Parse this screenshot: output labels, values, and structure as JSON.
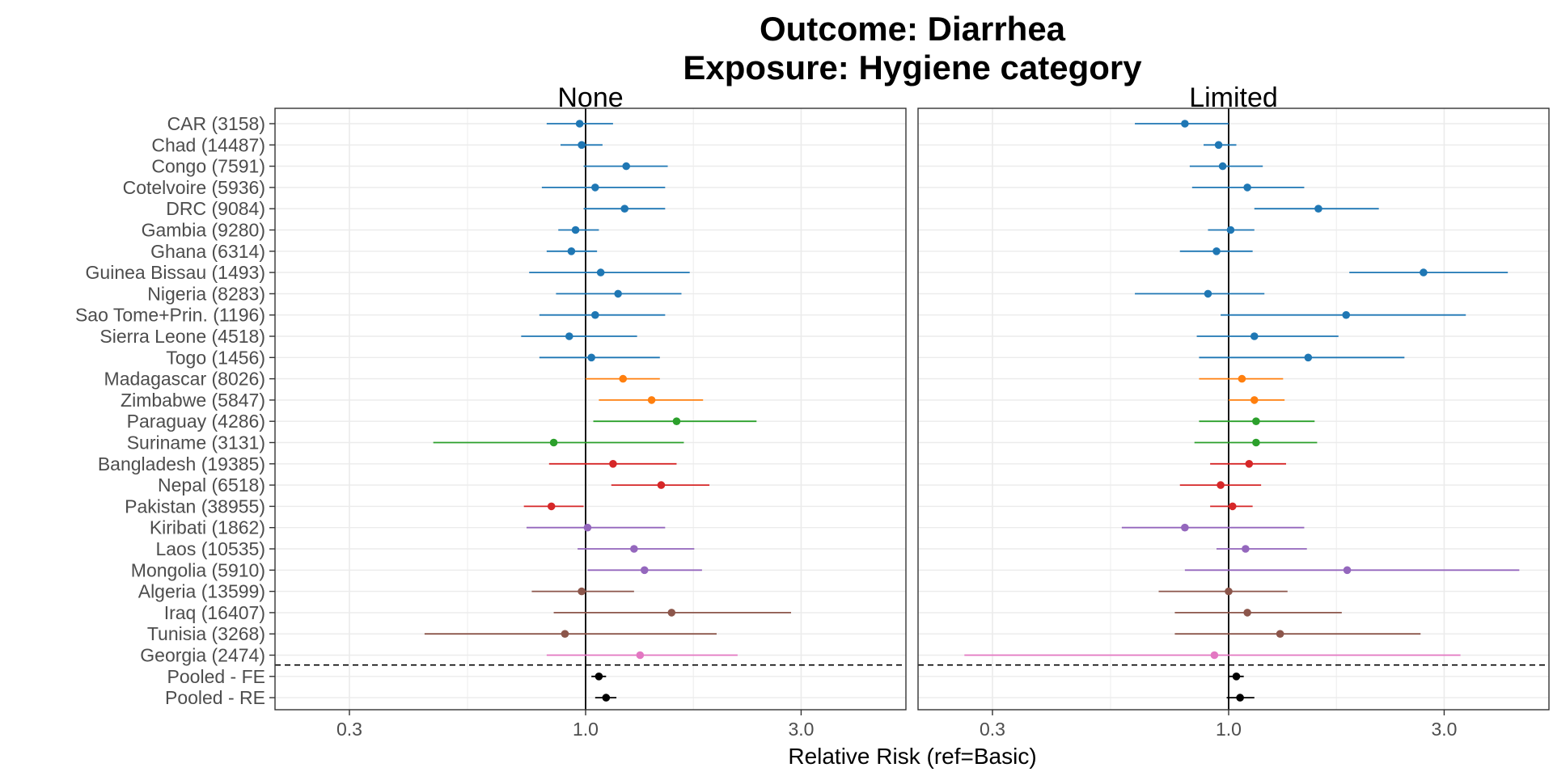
{
  "chart_data": {
    "type": "scatter",
    "title": "Outcome: Diarrhea",
    "subtitle": "Exposure: Hygiene category",
    "xlabel": "Relative Risk (ref=Basic)",
    "x_scale": "log",
    "xlim": [
      0.22,
      4.3
    ],
    "x_ticks": [
      0.3,
      1.0,
      3.0
    ],
    "x_tick_labels": [
      "0.3",
      "1.0",
      "3.0"
    ],
    "reference_line": 1.0,
    "grid": true,
    "colors": {
      "blue": "#1f77b4",
      "orange": "#ff7f0e",
      "green": "#2ca02c",
      "red": "#d62728",
      "purple": "#9467bd",
      "brown": "#8c564b",
      "pink": "#e377c2",
      "black": "#000000"
    },
    "rows": [
      {
        "label": "CAR (3158)",
        "color": "blue"
      },
      {
        "label": "Chad (14487)",
        "color": "blue"
      },
      {
        "label": "Congo (7591)",
        "color": "blue"
      },
      {
        "label": "Cotelvoire (5936)",
        "color": "blue"
      },
      {
        "label": "DRC (9084)",
        "color": "blue"
      },
      {
        "label": "Gambia (9280)",
        "color": "blue"
      },
      {
        "label": "Ghana (6314)",
        "color": "blue"
      },
      {
        "label": "Guinea Bissau (1493)",
        "color": "blue"
      },
      {
        "label": "Nigeria (8283)",
        "color": "blue"
      },
      {
        "label": "Sao Tome+Prin. (1196)",
        "color": "blue"
      },
      {
        "label": "Sierra Leone (4518)",
        "color": "blue"
      },
      {
        "label": "Togo (1456)",
        "color": "blue"
      },
      {
        "label": "Madagascar (8026)",
        "color": "orange"
      },
      {
        "label": "Zimbabwe (5847)",
        "color": "orange"
      },
      {
        "label": "Paraguay (4286)",
        "color": "green"
      },
      {
        "label": "Suriname (3131)",
        "color": "green"
      },
      {
        "label": "Bangladesh (19385)",
        "color": "red"
      },
      {
        "label": "Nepal (6518)",
        "color": "red"
      },
      {
        "label": "Pakistan (38955)",
        "color": "red"
      },
      {
        "label": "Kiribati (1862)",
        "color": "purple"
      },
      {
        "label": "Laos (10535)",
        "color": "purple"
      },
      {
        "label": "Mongolia (5910)",
        "color": "purple"
      },
      {
        "label": "Algeria (13599)",
        "color": "brown"
      },
      {
        "label": "Iraq (16407)",
        "color": "brown"
      },
      {
        "label": "Tunisia (3268)",
        "color": "brown"
      },
      {
        "label": "Georgia (2474)",
        "color": "pink"
      },
      {
        "label": "Pooled - FE",
        "color": "black"
      },
      {
        "label": "Pooled - RE",
        "color": "black"
      }
    ],
    "separator_after_row": 26,
    "panels": [
      {
        "name": "None",
        "points": [
          {
            "rr": 0.97,
            "lo": 0.82,
            "hi": 1.15
          },
          {
            "rr": 0.98,
            "lo": 0.88,
            "hi": 1.09
          },
          {
            "rr": 1.23,
            "lo": 0.99,
            "hi": 1.52
          },
          {
            "rr": 1.05,
            "lo": 0.8,
            "hi": 1.5
          },
          {
            "rr": 1.22,
            "lo": 0.99,
            "hi": 1.5
          },
          {
            "rr": 0.95,
            "lo": 0.87,
            "hi": 1.07
          },
          {
            "rr": 0.93,
            "lo": 0.82,
            "hi": 1.06
          },
          {
            "rr": 1.08,
            "lo": 0.75,
            "hi": 1.7
          },
          {
            "rr": 1.18,
            "lo": 0.86,
            "hi": 1.63
          },
          {
            "rr": 1.05,
            "lo": 0.79,
            "hi": 1.5
          },
          {
            "rr": 0.92,
            "lo": 0.72,
            "hi": 1.3
          },
          {
            "rr": 1.03,
            "lo": 0.79,
            "hi": 1.46
          },
          {
            "rr": 1.21,
            "lo": 1.0,
            "hi": 1.46
          },
          {
            "rr": 1.4,
            "lo": 1.07,
            "hi": 1.82
          },
          {
            "rr": 1.59,
            "lo": 1.04,
            "hi": 2.39
          },
          {
            "rr": 0.85,
            "lo": 0.46,
            "hi": 1.65
          },
          {
            "rr": 1.15,
            "lo": 0.83,
            "hi": 1.59
          },
          {
            "rr": 1.47,
            "lo": 1.14,
            "hi": 1.88
          },
          {
            "rr": 0.84,
            "lo": 0.73,
            "hi": 0.99
          },
          {
            "rr": 1.01,
            "lo": 0.74,
            "hi": 1.5
          },
          {
            "rr": 1.28,
            "lo": 0.96,
            "hi": 1.74
          },
          {
            "rr": 1.35,
            "lo": 1.01,
            "hi": 1.81
          },
          {
            "rr": 0.98,
            "lo": 0.76,
            "hi": 1.28
          },
          {
            "rr": 1.55,
            "lo": 0.85,
            "hi": 2.85
          },
          {
            "rr": 0.9,
            "lo": 0.44,
            "hi": 1.95
          },
          {
            "rr": 1.32,
            "lo": 0.82,
            "hi": 2.17
          },
          {
            "rr": 1.07,
            "lo": 1.03,
            "hi": 1.11
          },
          {
            "rr": 1.11,
            "lo": 1.05,
            "hi": 1.17
          }
        ]
      },
      {
        "name": "Limited",
        "points": [
          {
            "rr": 0.8,
            "lo": 0.62,
            "hi": 1.0
          },
          {
            "rr": 0.95,
            "lo": 0.88,
            "hi": 1.04
          },
          {
            "rr": 0.97,
            "lo": 0.82,
            "hi": 1.19
          },
          {
            "rr": 1.1,
            "lo": 0.83,
            "hi": 1.47
          },
          {
            "rr": 1.58,
            "lo": 1.14,
            "hi": 2.15
          },
          {
            "rr": 1.01,
            "lo": 0.9,
            "hi": 1.14
          },
          {
            "rr": 0.94,
            "lo": 0.78,
            "hi": 1.13
          },
          {
            "rr": 2.7,
            "lo": 1.85,
            "hi": 4.15
          },
          {
            "rr": 0.9,
            "lo": 0.62,
            "hi": 1.2
          },
          {
            "rr": 1.82,
            "lo": 0.96,
            "hi": 3.35
          },
          {
            "rr": 1.14,
            "lo": 0.85,
            "hi": 1.75
          },
          {
            "rr": 1.5,
            "lo": 0.86,
            "hi": 2.45
          },
          {
            "rr": 1.07,
            "lo": 0.86,
            "hi": 1.32
          },
          {
            "rr": 1.14,
            "lo": 1.0,
            "hi": 1.33
          },
          {
            "rr": 1.15,
            "lo": 0.86,
            "hi": 1.55
          },
          {
            "rr": 1.15,
            "lo": 0.84,
            "hi": 1.57
          },
          {
            "rr": 1.11,
            "lo": 0.91,
            "hi": 1.34
          },
          {
            "rr": 0.96,
            "lo": 0.78,
            "hi": 1.18
          },
          {
            "rr": 1.02,
            "lo": 0.91,
            "hi": 1.13
          },
          {
            "rr": 0.8,
            "lo": 0.58,
            "hi": 1.47
          },
          {
            "rr": 1.09,
            "lo": 0.94,
            "hi": 1.49
          },
          {
            "rr": 1.83,
            "lo": 0.8,
            "hi": 4.4
          },
          {
            "rr": 1.0,
            "lo": 0.7,
            "hi": 1.35
          },
          {
            "rr": 1.1,
            "lo": 0.76,
            "hi": 1.78
          },
          {
            "rr": 1.3,
            "lo": 0.76,
            "hi": 2.66
          },
          {
            "rr": 0.93,
            "lo": 0.26,
            "hi": 3.26
          },
          {
            "rr": 1.04,
            "lo": 1.0,
            "hi": 1.08
          },
          {
            "rr": 1.06,
            "lo": 0.99,
            "hi": 1.14
          }
        ]
      }
    ]
  }
}
